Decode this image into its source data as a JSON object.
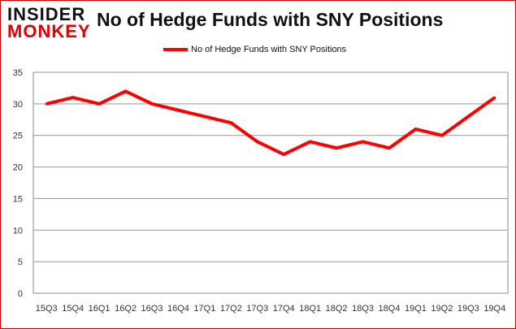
{
  "logo": {
    "line1": "INSIDER",
    "line2": "MONKEY"
  },
  "chart_data": {
    "type": "line",
    "title": "No of Hedge Funds with SNY Positions",
    "categories": [
      "15Q3",
      "15Q4",
      "16Q1",
      "16Q2",
      "16Q3",
      "16Q4",
      "17Q1",
      "17Q2",
      "17Q3",
      "17Q4",
      "18Q1",
      "18Q2",
      "18Q3",
      "18Q4",
      "19Q1",
      "19Q2",
      "19Q3",
      "19Q4"
    ],
    "series": [
      {
        "name": "No of Hedge Funds with SNY Positions",
        "color": "#ff0000",
        "values": [
          30,
          31,
          30,
          32,
          30,
          29,
          28,
          27,
          24,
          22,
          24,
          23,
          24,
          23,
          26,
          25,
          28,
          31
        ]
      }
    ],
    "yticks": [
      0,
      5,
      10,
      15,
      20,
      25,
      30,
      35
    ],
    "ylim": [
      0,
      35
    ],
    "grid": true,
    "legend": "top-center"
  }
}
